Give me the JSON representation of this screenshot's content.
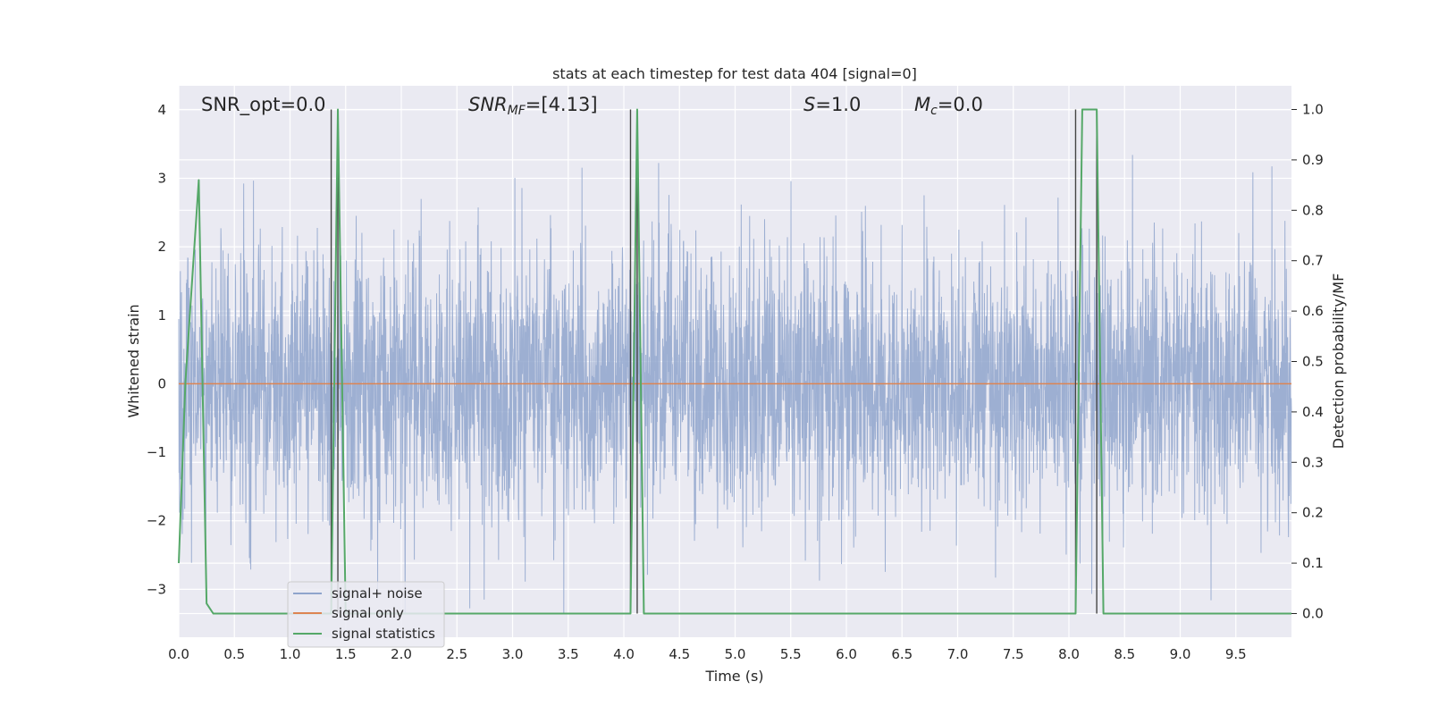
{
  "chart_data": {
    "type": "line",
    "title": "stats at each timestep for test data 404 [signal=0]",
    "xlabel": "Time (s)",
    "ylabel": "Whitened strain",
    "y2label": "Detection probability/MF",
    "xlim": [
      0.0,
      10.0
    ],
    "ylim": [
      -3.7,
      4.35
    ],
    "y2lim": [
      -0.047,
      1.047
    ],
    "x_ticks": [
      "0.0",
      "0.5",
      "1.0",
      "1.5",
      "2.0",
      "2.5",
      "3.0",
      "3.5",
      "4.0",
      "4.5",
      "5.0",
      "5.5",
      "6.0",
      "6.5",
      "7.0",
      "7.5",
      "8.0",
      "8.5",
      "9.0",
      "9.5"
    ],
    "y_ticks": [
      "−3",
      "−2",
      "−1",
      "0",
      "1",
      "2",
      "3",
      "4"
    ],
    "y2_ticks": [
      "0.0",
      "0.1",
      "0.2",
      "0.3",
      "0.4",
      "0.5",
      "0.6",
      "0.7",
      "0.8",
      "0.9",
      "1.0"
    ],
    "grid": true,
    "legend_position": "lower-left",
    "annotations": {
      "snr_opt": "SNR_opt=0.0",
      "snr_mf_main": "SNR",
      "snr_mf_sub": "MF",
      "snr_mf_rest": "=[4.13]",
      "s_main": "S",
      "s_rest": "=1.0",
      "mc_main": "M",
      "mc_sub": "c",
      "mc_rest": "=0.0"
    },
    "series": [
      {
        "name": "signal+ noise",
        "color": "#8fa4cc",
        "description_values": "white noise, approximately ±2.5 whitened strain, peaks to ~3.9 and ~-3.3",
        "seed": 404
      },
      {
        "name": "signal only",
        "color": "#dd8452",
        "x": [
          0.0,
          10.0
        ],
        "y": [
          0.0,
          0.0
        ]
      },
      {
        "name": "signal statistics",
        "color": "#55a868",
        "axis": "right",
        "x": [
          0.0,
          0.06,
          0.18,
          0.25,
          0.31,
          1.37,
          1.43,
          1.5,
          4.06,
          4.12,
          4.18,
          4.25,
          8.06,
          8.12,
          8.25,
          8.31,
          8.37,
          10.0
        ],
        "y": [
          0.1,
          0.46,
          0.86,
          0.02,
          0.0,
          0.0,
          1.0,
          0.0,
          0.0,
          1.0,
          0.0,
          0.0,
          0.0,
          1.0,
          1.0,
          0.0,
          0.0,
          0.0
        ]
      }
    ],
    "vertical_lines": {
      "color": "#444444",
      "x": [
        1.37,
        1.43,
        4.06,
        4.12,
        8.06,
        8.25
      ]
    }
  }
}
